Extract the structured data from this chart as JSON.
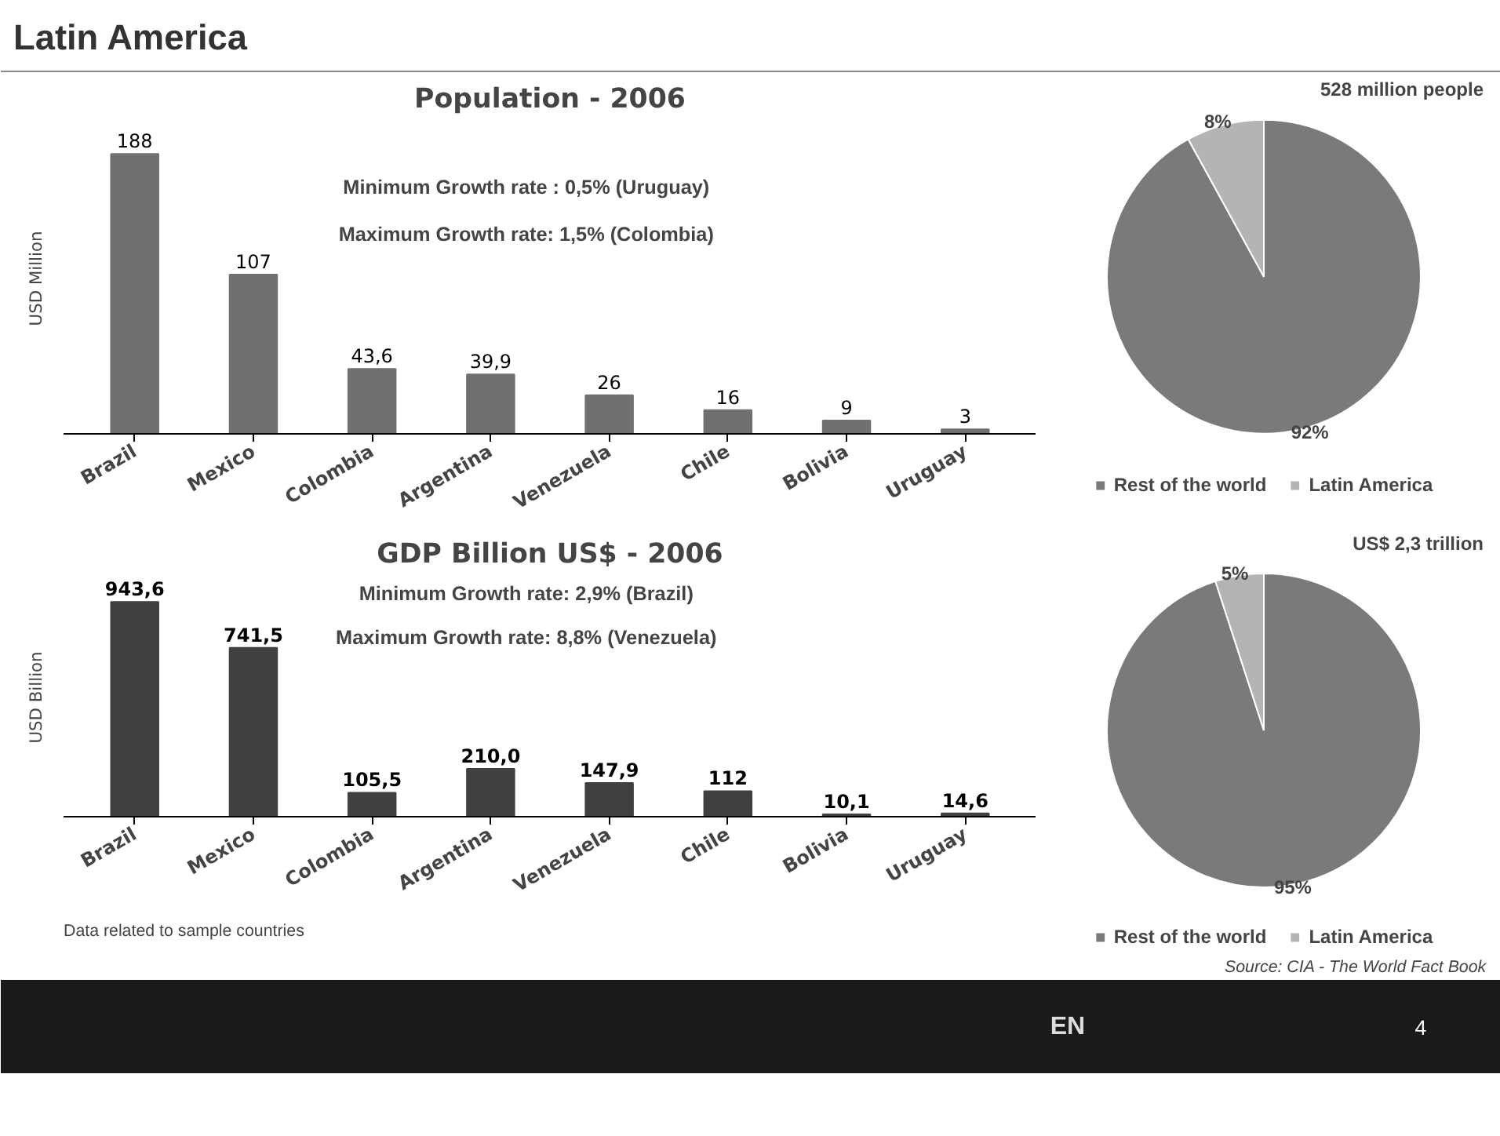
{
  "chart_data": [
    {
      "type": "bar",
      "title": "Population - 2006",
      "ylabel": "USD Million",
      "categories": [
        "Brazil",
        "Mexico",
        "Colombia",
        "Argentina",
        "Venezuela",
        "Chile",
        "Bolivia",
        "Uruguay"
      ],
      "values": [
        188,
        107,
        43.6,
        39.9,
        26,
        16,
        9,
        3
      ],
      "value_labels": [
        "188",
        "107",
        "43,6",
        "39,9",
        "26",
        "16",
        "9",
        "3"
      ],
      "color": "#707070",
      "tick_labels": "x",
      "grid": false,
      "annotations": [
        "Latin America",
        "Minimum Growth rate : 0,5% (Uruguay)",
        "Maximum Growth rate: 1,5% (Colombia)"
      ]
    },
    {
      "type": "pie",
      "categories": [
        "Rest of the world",
        "Latin America"
      ],
      "values": [
        92,
        8
      ],
      "value_labels": [
        "92%",
        "8%"
      ],
      "colors": [
        "#7a7a7a",
        "#b4b4b4"
      ],
      "legend": "bottom",
      "annotations": [
        "528 million people"
      ]
    },
    {
      "type": "bar",
      "title": "GDP Billion US$ - 2006",
      "ylabel": "USD Billion",
      "categories": [
        "Brazil",
        "Mexico",
        "Colombia",
        "Argentina",
        "Venezuela",
        "Chile",
        "Bolivia",
        "Uruguay"
      ],
      "values": [
        943.6,
        741.5,
        105.5,
        210.0,
        147.9,
        112,
        10.1,
        14.6
      ],
      "value_labels": [
        "943,6",
        "741,5",
        "105,5",
        "210,0",
        "147,9",
        "112",
        "10,1",
        "14,6"
      ],
      "color": "#404040",
      "tick_labels": "x",
      "grid": false,
      "annotations": [
        "Minimum Growth rate: 2,9% (Brazil)",
        "Maximum Growth rate: 8,8% (Venezuela)",
        "Data related to sample countries"
      ]
    },
    {
      "type": "pie",
      "categories": [
        "Rest of the world",
        "Latin America"
      ],
      "values": [
        95,
        5
      ],
      "value_labels": [
        "95%",
        "5%"
      ],
      "colors": [
        "#7a7a7a",
        "#b4b4b4"
      ],
      "legend": "bottom",
      "annotations": [
        "US$ 2,3 trillion",
        "Source: CIA - The World Fact Book",
        "EN",
        "4"
      ]
    }
  ]
}
